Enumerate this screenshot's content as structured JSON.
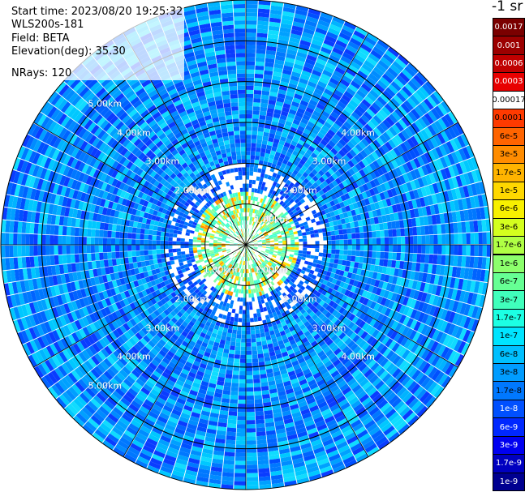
{
  "info": {
    "start_time": "Start time: 2023/08/20 19:25:32",
    "instrument": "WLS200s-181",
    "field": "Field: BETA",
    "elevation": "Elevation(deg): 35.30",
    "nrays": "NRays: 120"
  },
  "colorbar": {
    "units": "-1 sr",
    "segments": [
      {
        "label": "0.0017",
        "color": "#7a0000",
        "text": "#ffffff"
      },
      {
        "label": "0.001",
        "color": "#9c0000",
        "text": "#ffffff"
      },
      {
        "label": "0.0006",
        "color": "#c00000",
        "text": "#ffffff"
      },
      {
        "label": "0.0003",
        "color": "#e80000",
        "text": "#ffffff"
      },
      {
        "label": "0.00017",
        "color": "#ffffff",
        "text": "#000000"
      },
      {
        "label": "0.0001",
        "color": "#ff3a00",
        "text": "#000000"
      },
      {
        "label": "6e-5",
        "color": "#ff6400",
        "text": "#000000"
      },
      {
        "label": "3e-5",
        "color": "#ff8c00",
        "text": "#000000"
      },
      {
        "label": "1.7e-5",
        "color": "#ffb400",
        "text": "#000000"
      },
      {
        "label": "1e-5",
        "color": "#ffd800",
        "text": "#000000"
      },
      {
        "label": "6e-6",
        "color": "#f8f000",
        "text": "#000000"
      },
      {
        "label": "3e-6",
        "color": "#d4ff1e",
        "text": "#000000"
      },
      {
        "label": "1.7e-6",
        "color": "#b0ff44",
        "text": "#000000"
      },
      {
        "label": "1e-6",
        "color": "#8cff6c",
        "text": "#000000"
      },
      {
        "label": "6e-7",
        "color": "#66ff94",
        "text": "#000000"
      },
      {
        "label": "3e-7",
        "color": "#40ffbc",
        "text": "#000000"
      },
      {
        "label": "1.7e-7",
        "color": "#1cffe4",
        "text": "#000000"
      },
      {
        "label": "1e-7",
        "color": "#00e4ff",
        "text": "#000000"
      },
      {
        "label": "6e-8",
        "color": "#00c0ff",
        "text": "#000000"
      },
      {
        "label": "3e-8",
        "color": "#009cff",
        "text": "#000000"
      },
      {
        "label": "1.7e-8",
        "color": "#0078ff",
        "text": "#000000"
      },
      {
        "label": "1e-8",
        "color": "#0050ff",
        "text": "#ffffff"
      },
      {
        "label": "6e-9",
        "color": "#0028ff",
        "text": "#ffffff"
      },
      {
        "label": "3e-9",
        "color": "#0000f0",
        "text": "#ffffff"
      },
      {
        "label": "1.7e-9",
        "color": "#0000c0",
        "text": "#ffffff"
      },
      {
        "label": "1e-9",
        "color": "#000090",
        "text": "#ffffff"
      }
    ]
  },
  "range_rings": [
    "1.00km",
    "2.00km",
    "3.00km",
    "4.00km",
    "5.00km",
    "6.00km"
  ],
  "ring_labels": [
    {
      "text": "1.00km",
      "ring": 1,
      "angle": -45,
      "visible": true
    },
    {
      "text": "1.00km",
      "ring": 1,
      "angle": 45,
      "visible": true
    },
    {
      "text": "1.00km",
      "ring": 1,
      "angle": 135,
      "visible": true
    },
    {
      "text": "2.00km",
      "ring": 2,
      "angle": -45,
      "visible": true
    },
    {
      "text": "2.00km",
      "ring": 2,
      "angle": 45,
      "visible": true
    },
    {
      "text": "2.00km",
      "ring": 2,
      "angle": 135,
      "visible": true
    },
    {
      "text": "2.00km",
      "ring": 2,
      "angle": -135,
      "visible": true
    },
    {
      "text": "3.00km",
      "ring": 3,
      "angle": -45,
      "visible": true
    },
    {
      "text": "3.00km",
      "ring": 3,
      "angle": 45,
      "visible": true
    },
    {
      "text": "3.00km",
      "ring": 3,
      "angle": 135,
      "visible": true
    },
    {
      "text": "3.00km",
      "ring": 3,
      "angle": -135,
      "visible": true
    },
    {
      "text": "4.00km",
      "ring": 4,
      "angle": -45,
      "visible": true
    },
    {
      "text": "4.00km",
      "ring": 4,
      "angle": 45,
      "visible": true
    },
    {
      "text": "4.00km",
      "ring": 4,
      "angle": 135,
      "visible": true
    },
    {
      "text": "4.00km",
      "ring": 4,
      "angle": -135,
      "visible": true
    },
    {
      "text": "5.00km",
      "ring": 5,
      "angle": 135,
      "visible": true
    },
    {
      "text": "5.00km",
      "ring": 5,
      "angle": -135,
      "visible": true
    }
  ],
  "plot": {
    "ring_count": 6,
    "ray_count": 120,
    "dominant_level": "blue",
    "colors": {
      "outline": "#000000",
      "divider": "#ffffff"
    }
  }
}
